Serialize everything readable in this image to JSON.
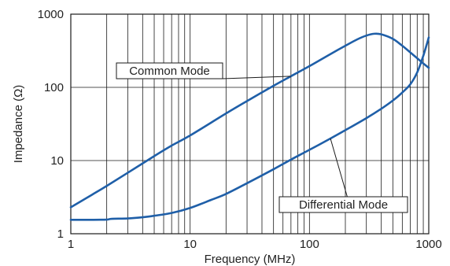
{
  "chart_data": {
    "type": "line",
    "title": "",
    "xlabel": "Frequency (MHz)",
    "ylabel": "Impedance (Ω)",
    "x_scale": "log",
    "y_scale": "log",
    "xlim": [
      1,
      1000
    ],
    "ylim": [
      1,
      1000
    ],
    "grid": true,
    "x_ticks": [
      {
        "value": 1,
        "label": "1"
      },
      {
        "value": 10,
        "label": "10"
      },
      {
        "value": 100,
        "label": "100"
      },
      {
        "value": 1000,
        "label": "1000"
      }
    ],
    "y_ticks": [
      {
        "value": 1,
        "label": "1"
      },
      {
        "value": 10,
        "label": "10"
      },
      {
        "value": 100,
        "label": "100"
      },
      {
        "value": 1000,
        "label": "1000"
      }
    ],
    "color": "#1f5fa8",
    "series": [
      {
        "name": "Common Mode",
        "points": [
          [
            1,
            2.3
          ],
          [
            1.5,
            3.4
          ],
          [
            2,
            4.5
          ],
          [
            3,
            6.8
          ],
          [
            5,
            11.5
          ],
          [
            7,
            16
          ],
          [
            10,
            22
          ],
          [
            20,
            44
          ],
          [
            30,
            65
          ],
          [
            50,
            105
          ],
          [
            70,
            142
          ],
          [
            100,
            195
          ],
          [
            150,
            285
          ],
          [
            200,
            370
          ],
          [
            250,
            450
          ],
          [
            300,
            510
          ],
          [
            350,
            540
          ],
          [
            400,
            530
          ],
          [
            500,
            460
          ],
          [
            600,
            370
          ],
          [
            700,
            300
          ],
          [
            800,
            250
          ],
          [
            900,
            212
          ],
          [
            1000,
            185
          ]
        ]
      },
      {
        "name": "Differential Mode",
        "points": [
          [
            1,
            1.55
          ],
          [
            1.5,
            1.55
          ],
          [
            2,
            1.56
          ],
          [
            2.2,
            1.6
          ],
          [
            3,
            1.62
          ],
          [
            4,
            1.68
          ],
          [
            5,
            1.76
          ],
          [
            7,
            1.92
          ],
          [
            10,
            2.25
          ],
          [
            15,
            2.9
          ],
          [
            20,
            3.5
          ],
          [
            30,
            4.9
          ],
          [
            50,
            7.6
          ],
          [
            70,
            10.3
          ],
          [
            100,
            14
          ],
          [
            150,
            20
          ],
          [
            200,
            26
          ],
          [
            300,
            38
          ],
          [
            400,
            51
          ],
          [
            500,
            66
          ],
          [
            600,
            85
          ],
          [
            700,
            110
          ],
          [
            800,
            160
          ],
          [
            900,
            270
          ],
          [
            1000,
            480
          ]
        ]
      }
    ],
    "annotations": [
      {
        "text": "Common Mode",
        "series": "Common Mode",
        "target": [
          70,
          142
        ]
      },
      {
        "text": "Differential Mode",
        "series": "Differential Mode",
        "target": [
          150,
          20
        ]
      }
    ]
  }
}
